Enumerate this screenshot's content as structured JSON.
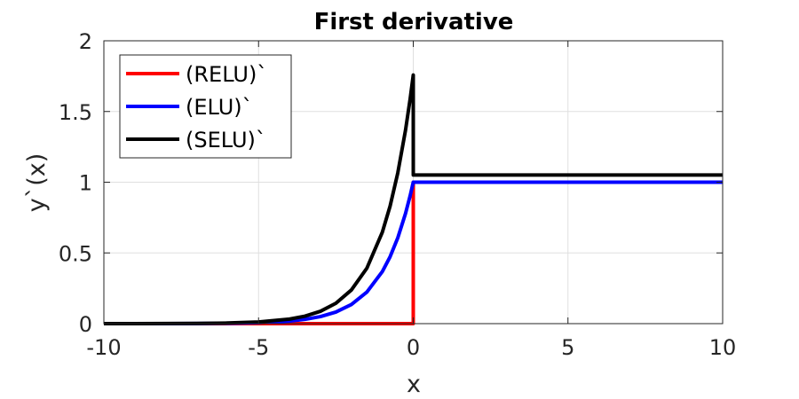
{
  "chart_data": {
    "type": "line",
    "title": "First derivative",
    "xlabel": "x",
    "ylabel": "y`(x)",
    "xlim": [
      -10,
      10
    ],
    "ylim": [
      0,
      2
    ],
    "xticks": [
      -10,
      -5,
      0,
      5,
      10
    ],
    "xtick_labels": [
      "-10",
      "-5",
      "0",
      "5",
      "10"
    ],
    "yticks": [
      0,
      0.5,
      1,
      1.5,
      2
    ],
    "ytick_labels": [
      "0",
      "0.5",
      "1",
      "1.5",
      "2"
    ],
    "grid": true,
    "legend_position": "top-left",
    "x": [
      -10,
      -9,
      -8,
      -7,
      -6,
      -5,
      -4,
      -3.5,
      -3,
      -2.5,
      -2,
      -1.5,
      -1,
      -0.75,
      -0.5,
      -0.25,
      -0.1,
      0,
      0.001,
      0.5,
      1,
      2,
      3,
      4,
      5,
      6,
      7,
      8,
      9,
      10
    ],
    "series": [
      {
        "name": "(RELU)`",
        "color": "#ff0000",
        "values": [
          0,
          0,
          0,
          0,
          0,
          0,
          0,
          0,
          0,
          0,
          0,
          0,
          0,
          0,
          0,
          0,
          0,
          0,
          1,
          1,
          1,
          1,
          1,
          1,
          1,
          1,
          1,
          1,
          1,
          1
        ]
      },
      {
        "name": "(ELU)`",
        "color": "#0000ff",
        "values": [
          5e-05,
          0.00012,
          0.00034,
          0.00091,
          0.0025,
          0.0067,
          0.0183,
          0.0302,
          0.0498,
          0.0821,
          0.1353,
          0.2231,
          0.3679,
          0.4724,
          0.6065,
          0.7788,
          0.9048,
          1,
          1,
          1,
          1,
          1,
          1,
          1,
          1,
          1,
          1,
          1,
          1,
          1
        ]
      },
      {
        "name": "(SELU)`",
        "color": "#000000",
        "values": [
          8e-05,
          0.00021,
          0.00059,
          0.0016,
          0.0044,
          0.0118,
          0.0321,
          0.053,
          0.0875,
          0.1442,
          0.2378,
          0.392,
          0.6464,
          0.83,
          1.0657,
          1.3684,
          1.5898,
          1.7581,
          1.0507,
          1.0507,
          1.0507,
          1.0507,
          1.0507,
          1.0507,
          1.0507,
          1.0507,
          1.0507,
          1.0507,
          1.0507,
          1.0507
        ]
      }
    ]
  }
}
